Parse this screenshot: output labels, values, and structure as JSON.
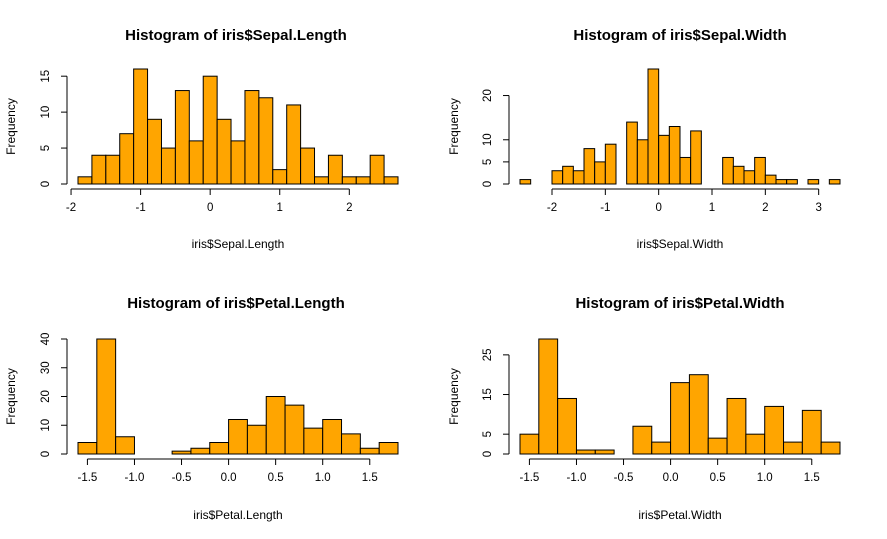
{
  "style": {
    "bar_color": "#FFA500",
    "bar_border": "#000000",
    "background": "#FFFFFF"
  },
  "chart_data": [
    {
      "type": "bar",
      "title": "Histogram of iris$Sepal.Length",
      "xlabel": "iris$Sepal.Length",
      "ylabel": "Frequency",
      "x_ticks": [
        -2,
        -1,
        0,
        1,
        2
      ],
      "x_tick_labels": [
        "-2",
        "-1",
        "0",
        "1",
        "2"
      ],
      "y_ticks": [
        0,
        5,
        10,
        15
      ],
      "y_tick_labels": [
        "0",
        "5",
        "10",
        "15"
      ],
      "bin_start": -1.9,
      "bin_width": 0.2,
      "values": [
        1,
        4,
        4,
        7,
        16,
        9,
        5,
        13,
        6,
        15,
        9,
        6,
        13,
        12,
        2,
        11,
        5,
        1,
        4,
        1,
        1,
        4,
        1
      ],
      "xlim": [
        -1.9,
        2.7
      ],
      "ylim": [
        0,
        16
      ]
    },
    {
      "type": "bar",
      "title": "Histogram of iris$Sepal.Width",
      "xlabel": "iris$Sepal.Width",
      "ylabel": "Frequency",
      "x_ticks": [
        -2,
        -1,
        0,
        1,
        2,
        3
      ],
      "x_tick_labels": [
        "-2",
        "-1",
        "0",
        "1",
        "2",
        "3"
      ],
      "y_ticks": [
        0,
        5,
        10,
        20
      ],
      "y_tick_labels": [
        "0",
        "5",
        "10",
        "20"
      ],
      "bin_start": -2.6,
      "bin_width": 0.2,
      "values": [
        1,
        0,
        0,
        3,
        4,
        3,
        8,
        5,
        9,
        0,
        14,
        10,
        26,
        11,
        13,
        6,
        12,
        0,
        0,
        6,
        4,
        3,
        6,
        2,
        1,
        1,
        0,
        1,
        0,
        1
      ],
      "xlim": [
        -2.6,
        3.4
      ],
      "ylim": [
        0,
        26
      ]
    },
    {
      "type": "bar",
      "title": "Histogram of iris$Petal.Length",
      "xlabel": "iris$Petal.Length",
      "ylabel": "Frequency",
      "x_ticks": [
        -1.5,
        -1.0,
        -0.5,
        0.0,
        0.5,
        1.0,
        1.5
      ],
      "x_tick_labels": [
        "-1.5",
        "-1.0",
        "-0.5",
        "0.0",
        "0.5",
        "1.0",
        "1.5"
      ],
      "y_ticks": [
        0,
        10,
        20,
        30,
        40
      ],
      "y_tick_labels": [
        "0",
        "10",
        "20",
        "30",
        "40"
      ],
      "bin_start": -1.6,
      "bin_width": 0.2,
      "values": [
        4,
        40,
        6,
        0,
        0,
        1,
        2,
        4,
        12,
        10,
        20,
        17,
        9,
        12,
        7,
        2,
        4
      ],
      "xlim": [
        -1.6,
        1.8
      ],
      "ylim": [
        0,
        40
      ]
    },
    {
      "type": "bar",
      "title": "Histogram of iris$Petal.Width",
      "xlabel": "iris$Petal.Width",
      "ylabel": "Frequency",
      "x_ticks": [
        -1.5,
        -1.0,
        -0.5,
        0.0,
        0.5,
        1.0,
        1.5
      ],
      "x_tick_labels": [
        "-1.5",
        "-1.0",
        "-0.5",
        "0.0",
        "0.5",
        "1.0",
        "1.5"
      ],
      "y_ticks": [
        0,
        5,
        15,
        25
      ],
      "y_tick_labels": [
        "0",
        "5",
        "15",
        "25"
      ],
      "bin_start": -1.6,
      "bin_width": 0.2,
      "values": [
        5,
        29,
        14,
        1,
        1,
        0,
        7,
        3,
        18,
        20,
        4,
        14,
        5,
        12,
        3,
        11,
        3
      ],
      "xlim": [
        -1.6,
        1.8
      ],
      "ylim": [
        0,
        29
      ]
    }
  ]
}
